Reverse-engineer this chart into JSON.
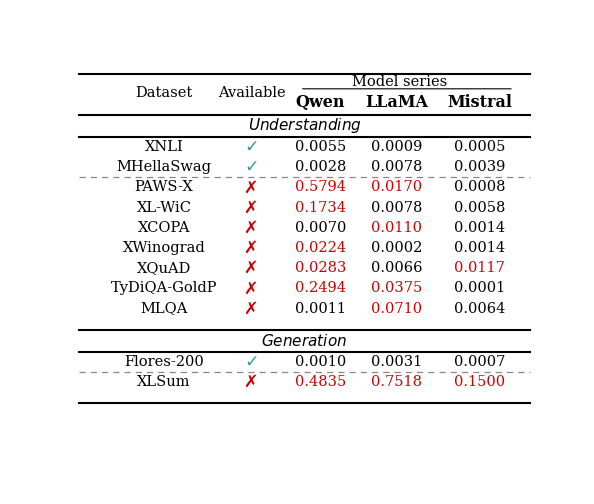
{
  "col_x": {
    "dataset": 0.195,
    "available": 0.385,
    "qwen": 0.535,
    "llama": 0.7,
    "mistral": 0.88
  },
  "rows": [
    {
      "dataset": "XNLI",
      "available": true,
      "qwen": "0.0055",
      "llama": "0.0009",
      "mistral": "0.0005",
      "qwen_red": false,
      "llama_red": false,
      "mistral_red": false,
      "section": "understanding",
      "dashed_below": false
    },
    {
      "dataset": "MHellaSwag",
      "available": true,
      "qwen": "0.0028",
      "llama": "0.0078",
      "mistral": "0.0039",
      "qwen_red": false,
      "llama_red": false,
      "mistral_red": false,
      "section": "understanding",
      "dashed_below": true
    },
    {
      "dataset": "PAWS-X",
      "available": false,
      "qwen": "0.5794",
      "llama": "0.0170",
      "mistral": "0.0008",
      "qwen_red": true,
      "llama_red": true,
      "mistral_red": false,
      "section": "understanding",
      "dashed_below": false
    },
    {
      "dataset": "XL-WiC",
      "available": false,
      "qwen": "0.1734",
      "llama": "0.0078",
      "mistral": "0.0058",
      "qwen_red": true,
      "llama_red": false,
      "mistral_red": false,
      "section": "understanding",
      "dashed_below": false
    },
    {
      "dataset": "XCOPA",
      "available": false,
      "qwen": "0.0070",
      "llama": "0.0110",
      "mistral": "0.0014",
      "qwen_red": false,
      "llama_red": true,
      "mistral_red": false,
      "section": "understanding",
      "dashed_below": false
    },
    {
      "dataset": "XWinograd",
      "available": false,
      "qwen": "0.0224",
      "llama": "0.0002",
      "mistral": "0.0014",
      "qwen_red": true,
      "llama_red": false,
      "mistral_red": false,
      "section": "understanding",
      "dashed_below": false
    },
    {
      "dataset": "XQuAD",
      "available": false,
      "qwen": "0.0283",
      "llama": "0.0066",
      "mistral": "0.0117",
      "qwen_red": true,
      "llama_red": false,
      "mistral_red": true,
      "section": "understanding",
      "dashed_below": false
    },
    {
      "dataset": "TyDiQA-GoldP",
      "available": false,
      "qwen": "0.2494",
      "llama": "0.0375",
      "mistral": "0.0001",
      "qwen_red": true,
      "llama_red": true,
      "mistral_red": false,
      "section": "understanding",
      "dashed_below": false
    },
    {
      "dataset": "MLQA",
      "available": false,
      "qwen": "0.0011",
      "llama": "0.0710",
      "mistral": "0.0064",
      "qwen_red": false,
      "llama_red": true,
      "mistral_red": false,
      "section": "understanding",
      "dashed_below": false
    },
    {
      "dataset": "Flores-200",
      "available": true,
      "qwen": "0.0010",
      "llama": "0.0031",
      "mistral": "0.0007",
      "qwen_red": false,
      "llama_red": false,
      "mistral_red": false,
      "section": "generation",
      "dashed_below": true
    },
    {
      "dataset": "XLSum",
      "available": false,
      "qwen": "0.4835",
      "llama": "0.7518",
      "mistral": "0.1500",
      "qwen_red": true,
      "llama_red": true,
      "mistral_red": true,
      "section": "generation",
      "dashed_below": false
    }
  ],
  "check_color": "#2a9d8f",
  "cross_color": "#cc0000",
  "red_text": "#cc0000",
  "black_text": "#000000",
  "bg_color": "#ffffff",
  "font_size": 10.5,
  "small_caps_big": 11.5,
  "small_caps_small": 8.5
}
